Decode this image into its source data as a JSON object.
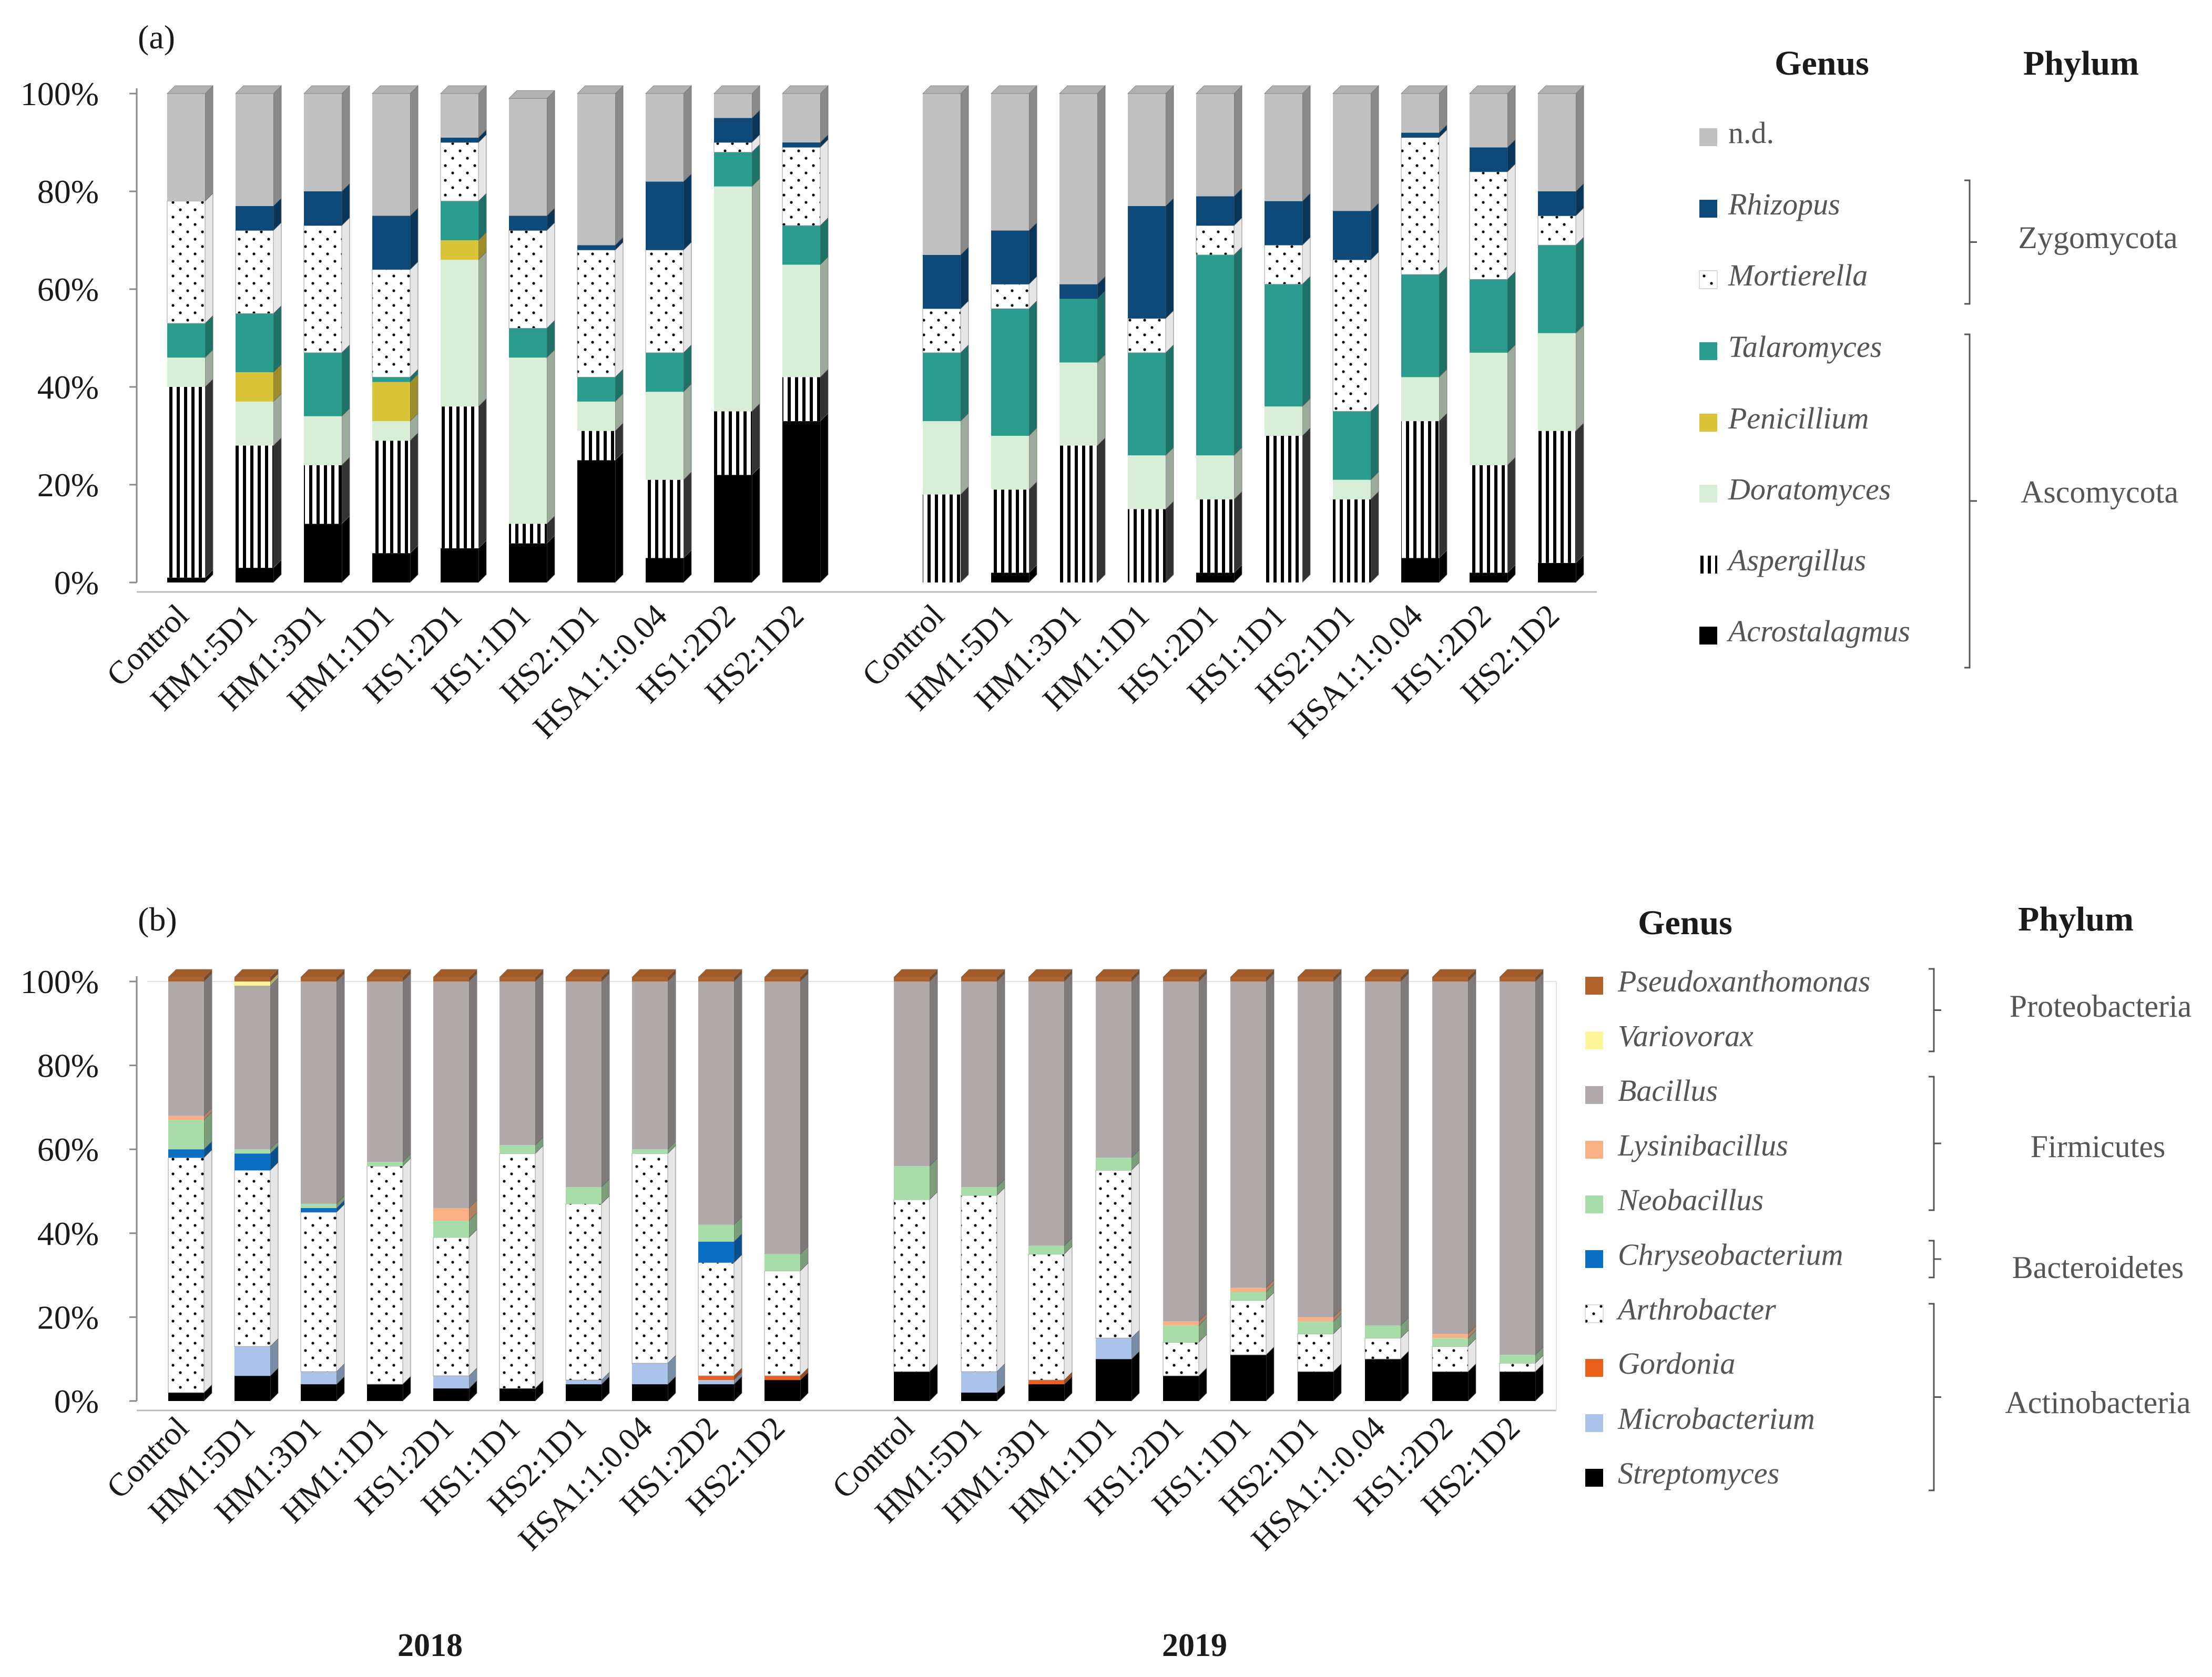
{
  "years": [
    "2018",
    "2019"
  ],
  "chart_data": [
    {
      "type": "bar",
      "stacked": true,
      "panel": "(a)",
      "title": "",
      "ylim": [
        0,
        100
      ],
      "yticks": [
        "0%",
        "20%",
        "40%",
        "60%",
        "80%",
        "100%"
      ],
      "categories": [
        "Control",
        "HM1:5D1",
        "HM1:3D1",
        "HM1:1D1",
        "HS1:2D1",
        "HS1:1D1",
        "HS2:1D1",
        "HSA1:1:0.04",
        "HS1:2D2",
        "HS2:1D2"
      ],
      "groups": [
        "2018",
        "2019"
      ],
      "legend_header": "Genus",
      "phylum_header": "Phylum",
      "series": [
        {
          "name": "Acrostalagmus",
          "italic": true,
          "color": "#000000",
          "pattern": "solid",
          "values": {
            "2018": [
              1,
              3,
              12,
              6,
              7,
              8,
              25,
              5,
              22,
              33
            ],
            "2019": [
              0,
              2,
              0,
              0,
              2,
              0,
              0,
              5,
              2,
              4
            ]
          }
        },
        {
          "name": "Aspergillus",
          "italic": true,
          "color": "#000000",
          "pattern": "vstripe",
          "values": {
            "2018": [
              39,
              25,
              12,
              23,
              29,
              4,
              6,
              16,
              13,
              9
            ],
            "2019": [
              18,
              17,
              28,
              15,
              15,
              30,
              17,
              28,
              22,
              27
            ]
          }
        },
        {
          "name": "Doratomyces",
          "italic": true,
          "color": "#d9eed7",
          "pattern": "solid",
          "values": {
            "2018": [
              6,
              9,
              10,
              4,
              30,
              34,
              6,
              18,
              46,
              23
            ],
            "2019": [
              15,
              11,
              17,
              11,
              9,
              6,
              4,
              9,
              23,
              20
            ]
          }
        },
        {
          "name": "Penicillium",
          "italic": true,
          "color": "#d9c43a",
          "pattern": "solid",
          "values": {
            "2018": [
              0,
              6,
              0,
              8,
              4,
              0,
              0,
              0,
              0,
              0
            ],
            "2019": [
              0,
              0,
              0,
              0,
              0,
              0,
              0,
              0,
              0,
              0
            ]
          }
        },
        {
          "name": "Talaromyces",
          "italic": true,
          "color": "#2a9d8f",
          "pattern": "solid",
          "values": {
            "2018": [
              7,
              12,
              13,
              1,
              8,
              6,
              5,
              8,
              7,
              8
            ],
            "2019": [
              14,
              26,
              13,
              21,
              41,
              25,
              14,
              21,
              15,
              18
            ]
          }
        },
        {
          "name": "Mortierella",
          "italic": true,
          "color": "#ffffff",
          "pattern": "dots",
          "values": {
            "2018": [
              25,
              17,
              26,
              22,
              12,
              20,
              26,
              21,
              2,
              16
            ],
            "2019": [
              9,
              5,
              0,
              7,
              6,
              8,
              31,
              28,
              22,
              6
            ]
          }
        },
        {
          "name": "Rhizopus",
          "italic": true,
          "color": "#0d4a7a",
          "pattern": "solid",
          "values": {
            "2018": [
              0,
              5,
              7,
              11,
              1,
              3,
              1,
              14,
              5,
              1
            ],
            "2019": [
              11,
              11,
              3,
              23,
              6,
              9,
              10,
              1,
              5,
              5
            ]
          }
        },
        {
          "name": "n.d.",
          "italic": false,
          "color": "#c0c0c0",
          "pattern": "solid",
          "values": {
            "2018": [
              22,
              23,
              20,
              25,
              9,
              24,
              31,
              18,
              5,
              10
            ],
            "2019": [
              33,
              28,
              39,
              23,
              21,
              22,
              24,
              8,
              11,
              20
            ]
          }
        }
      ],
      "phyla": [
        {
          "name": "Zygomycota",
          "genera": [
            "Rhizopus",
            "Mortierella"
          ]
        },
        {
          "name": "Ascomycota",
          "genera": [
            "Talaromyces",
            "Penicillium",
            "Doratomyces",
            "Aspergillus",
            "Acrostalagmus"
          ]
        }
      ]
    },
    {
      "type": "bar",
      "stacked": true,
      "panel": "(b)",
      "title": "",
      "ylim": [
        0,
        100
      ],
      "yticks": [
        "0%",
        "20%",
        "40%",
        "60%",
        "80%",
        "100%"
      ],
      "categories": [
        "Control",
        "HM1:5D1",
        "HM1:3D1",
        "HM1:1D1",
        "HS1:2D1",
        "HS1:1D1",
        "HS2:1D1",
        "HSA1:1:0.04",
        "HS1:2D2",
        "HS2:1D2"
      ],
      "groups": [
        "2018",
        "2019"
      ],
      "legend_header": "Genus",
      "phylum_header": "Phylum",
      "series": [
        {
          "name": "Streptomyces",
          "italic": true,
          "color": "#000000",
          "pattern": "solid",
          "values": {
            "2018": [
              2,
              6,
              4,
              4,
              3,
              3,
              4,
              4,
              4,
              5
            ],
            "2019": [
              7,
              2,
              4,
              10,
              6,
              11,
              7,
              10,
              7,
              7
            ]
          }
        },
        {
          "name": "Microbacterium",
          "italic": true,
          "color": "#a9c4e8",
          "pattern": "solid",
          "values": {
            "2018": [
              0,
              7,
              3,
              0,
              3,
              0,
              1,
              5,
              1,
              0
            ],
            "2019": [
              0,
              5,
              0,
              5,
              0,
              0,
              0,
              0,
              0,
              0
            ]
          }
        },
        {
          "name": "Gordonia",
          "italic": true,
          "color": "#e8601c",
          "pattern": "solid",
          "values": {
            "2018": [
              0,
              0,
              0,
              0,
              0,
              0,
              0,
              0,
              1,
              1
            ],
            "2019": [
              0,
              0,
              1,
              0,
              0,
              0,
              0,
              0,
              0,
              0
            ]
          }
        },
        {
          "name": "Arthrobacter",
          "italic": true,
          "color": "#ffffff",
          "pattern": "dots",
          "values": {
            "2018": [
              56,
              42,
              38,
              52,
              33,
              56,
              42,
              50,
              27,
              25
            ],
            "2019": [
              41,
              42,
              30,
              40,
              8,
              13,
              9,
              5,
              6,
              2
            ]
          }
        },
        {
          "name": "Chryseobacterium",
          "italic": true,
          "color": "#0a6fc2",
          "pattern": "solid",
          "values": {
            "2018": [
              2,
              4,
              1,
              0,
              0,
              0,
              0,
              0,
              5,
              0
            ],
            "2019": [
              0,
              0,
              0,
              0,
              0,
              0,
              0,
              0,
              0,
              0
            ]
          }
        },
        {
          "name": "Neobacillus",
          "italic": true,
          "color": "#a8dca8",
          "pattern": "solid",
          "values": {
            "2018": [
              7,
              1,
              1,
              1,
              4,
              2,
              4,
              1,
              4,
              4
            ],
            "2019": [
              8,
              2,
              2,
              3,
              4,
              2,
              3,
              3,
              2,
              2
            ]
          }
        },
        {
          "name": "Lysinibacillus",
          "italic": true,
          "color": "#f7b185",
          "pattern": "solid",
          "values": {
            "2018": [
              1,
              0,
              0,
              0,
              3,
              0,
              0,
              0,
              0,
              0
            ],
            "2019": [
              0,
              0,
              0,
              0,
              1,
              1,
              1,
              0,
              1,
              0
            ]
          }
        },
        {
          "name": "Bacillus",
          "italic": true,
          "color": "#b0aaaa",
          "pattern": "solid",
          "values": {
            "2018": [
              32,
              39,
              53,
              43,
              54,
              39,
              49,
              40,
              58,
              65
            ],
            "2019": [
              44,
              49,
              63,
              42,
              81,
              73,
              80,
              82,
              84,
              89
            ]
          }
        },
        {
          "name": "Variovorax",
          "italic": true,
          "color": "#fdf59a",
          "pattern": "solid",
          "values": {
            "2018": [
              0,
              1,
              0,
              0,
              0,
              0,
              0,
              0,
              0,
              0
            ],
            "2019": [
              0,
              0,
              0,
              0,
              0,
              0,
              0,
              0,
              0,
              0
            ]
          }
        },
        {
          "name": "Pseudoxanthomonas",
          "italic": true,
          "color": "#b0622a",
          "pattern": "solid",
          "values": {
            "2018": [
              1,
              1,
              1,
              1,
              1,
              1,
              1,
              1,
              1,
              1
            ],
            "2019": [
              1,
              1,
              1,
              1,
              1,
              1,
              1,
              1,
              1,
              1
            ]
          }
        }
      ],
      "phyla": [
        {
          "name": "Proteobacteria",
          "genera": [
            "Pseudoxanthomonas",
            "Variovorax"
          ]
        },
        {
          "name": "Firmicutes",
          "genera": [
            "Bacillus",
            "Lysinibacillus",
            "Neobacillus"
          ]
        },
        {
          "name": "Bacteroidetes",
          "genera": [
            "Chryseobacterium"
          ]
        },
        {
          "name": "Actinobacteria",
          "genera": [
            "Arthrobacter",
            "Gordonia",
            "Microbacterium",
            "Streptomyces"
          ]
        }
      ]
    }
  ]
}
